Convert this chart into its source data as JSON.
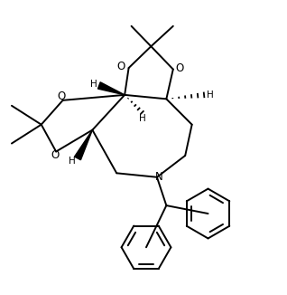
{
  "background": "#ffffff",
  "line_color": "#000000",
  "line_width": 1.4,
  "figsize": [
    3.18,
    3.26
  ],
  "dpi": 100,
  "xlim": [
    0,
    10
  ],
  "ylim": [
    0,
    10.5
  ]
}
